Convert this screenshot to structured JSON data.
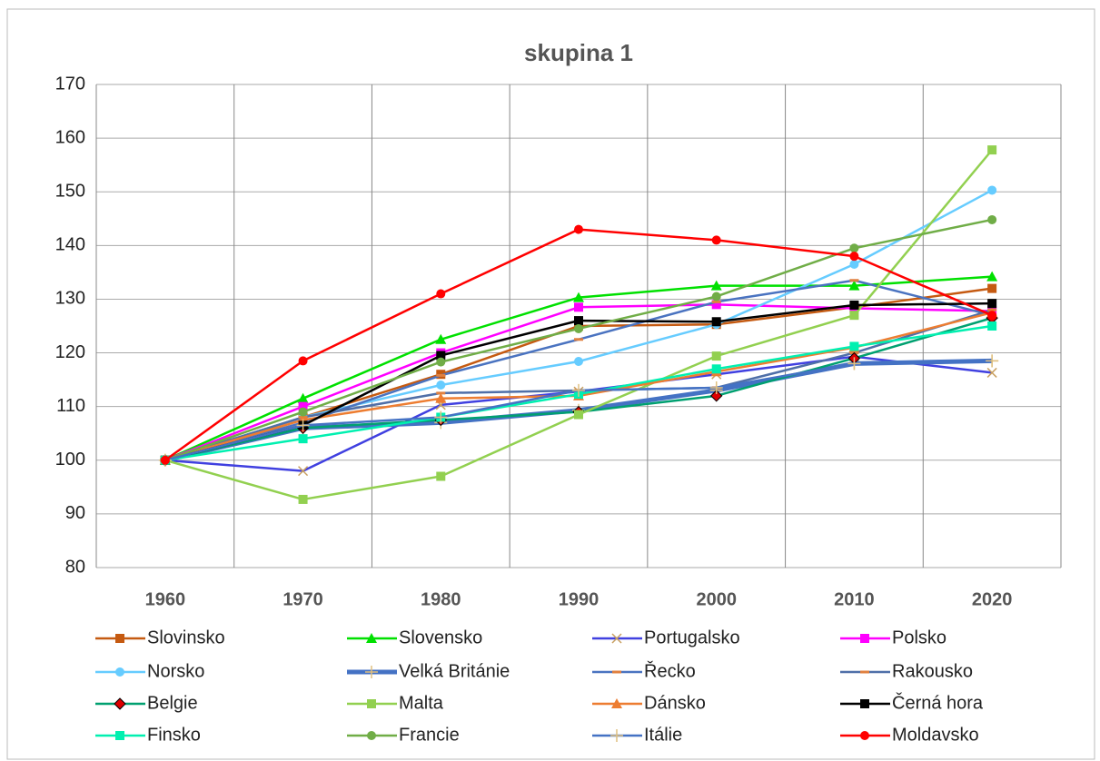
{
  "chart_data": {
    "type": "line",
    "title": "skupina 1",
    "categories": [
      "1960",
      "1970",
      "1980",
      "1990",
      "2000",
      "2010",
      "2020"
    ],
    "ylim": [
      80,
      170
    ],
    "yticks": [
      80,
      90,
      100,
      110,
      120,
      130,
      140,
      150,
      160,
      170
    ],
    "grid": true,
    "legend": "bottom",
    "series": [
      {
        "name": "Slovinsko",
        "color": "#c55a11",
        "marker": "square",
        "values": [
          100,
          108,
          116,
          125,
          125.3,
          128.5,
          132
        ]
      },
      {
        "name": "Slovensko",
        "color": "#00e000",
        "marker": "triangle",
        "values": [
          100,
          111.5,
          122.5,
          130.3,
          132.5,
          132.5,
          134.2
        ]
      },
      {
        "name": "Portugalsko",
        "color": "#4040e0",
        "marker": "x",
        "values": [
          100,
          98,
          110.3,
          112.8,
          116,
          119.3,
          116.3
        ]
      },
      {
        "name": "Polsko",
        "color": "#ff00ff",
        "marker": "square",
        "values": [
          100,
          110,
          120,
          128.5,
          129,
          128.3,
          127.8
        ]
      },
      {
        "name": "Norsko",
        "color": "#66ccff",
        "marker": "circle",
        "values": [
          100,
          108,
          114,
          118.4,
          125.3,
          136.5,
          150.3
        ]
      },
      {
        "name": "Velká Británie",
        "color": "#4472c4",
        "marker": "plus",
        "values": [
          100,
          106,
          107,
          109.3,
          113,
          118,
          118.5
        ]
      },
      {
        "name": "Řecko",
        "color": "#4a73c0",
        "marker": "dash",
        "values": [
          100,
          107,
          115.8,
          122.5,
          129.5,
          133.5,
          127
        ]
      },
      {
        "name": "Rakousko",
        "color": "#4f6fa8",
        "marker": "dash",
        "values": [
          100,
          108,
          112.5,
          113,
          113.5,
          120,
          128
        ]
      },
      {
        "name": "Belgie",
        "color": "#00a070",
        "marker": "diamond",
        "values": [
          100,
          106,
          107.5,
          109,
          112,
          119,
          126.5
        ]
      },
      {
        "name": "Malta",
        "color": "#92d050",
        "marker": "square",
        "values": [
          100,
          92.7,
          97,
          108.5,
          119.4,
          127,
          157.8
        ]
      },
      {
        "name": "Dánsko",
        "color": "#ed7d31",
        "marker": "triangle",
        "values": [
          100,
          107.5,
          111.5,
          112,
          116.5,
          121,
          127.5
        ]
      },
      {
        "name": "Černá hora",
        "color": "#000000",
        "marker": "square",
        "values": [
          100,
          106.5,
          119.5,
          126,
          125.8,
          128.9,
          129.2
        ]
      },
      {
        "name": "Finsko",
        "color": "#00f0b0",
        "marker": "square",
        "values": [
          100,
          104,
          108,
          112.3,
          117,
          121.2,
          125
        ]
      },
      {
        "name": "Francie",
        "color": "#70ad47",
        "marker": "circle",
        "values": [
          100,
          109,
          118.3,
          124.5,
          130.5,
          139.5,
          144.8
        ]
      },
      {
        "name": "Itálie",
        "color": "#4472c4",
        "marker": "plus",
        "values": [
          100,
          106.5,
          108,
          113,
          113.5,
          118,
          118.5
        ]
      },
      {
        "name": "Moldavsko",
        "color": "#ff0000",
        "marker": "circle",
        "values": [
          100,
          118.5,
          131,
          143,
          141,
          138,
          127
        ]
      }
    ]
  }
}
